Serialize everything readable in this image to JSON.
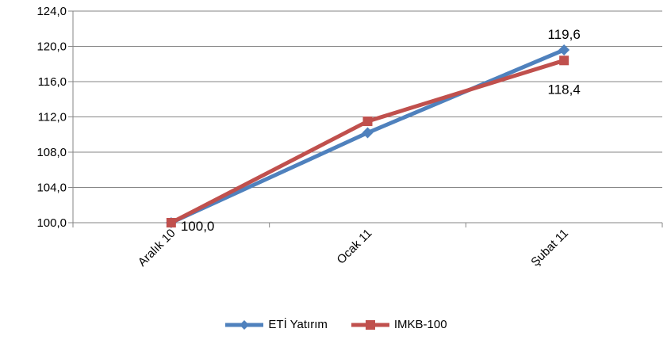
{
  "chart_data": {
    "type": "line",
    "title": "",
    "xlabel": "",
    "ylabel": "",
    "categories": [
      "Aralık 10",
      "Ocak 11",
      "Şubat 11"
    ],
    "ylim": [
      100,
      124
    ],
    "yticks": [
      "100,0",
      "104,0",
      "108,0",
      "112,0",
      "116,0",
      "120,0",
      "124,0"
    ],
    "grid": true,
    "legend_position": "bottom",
    "series": [
      {
        "name": "ETİ Yatırım",
        "color": "#4F81BD",
        "marker": "diamond",
        "values": [
          100.0,
          110.2,
          119.6
        ],
        "labels": [
          "100,0",
          "",
          "119,6"
        ]
      },
      {
        "name": "IMKB-100",
        "color": "#C0504D",
        "marker": "square",
        "values": [
          100.0,
          111.5,
          118.4
        ],
        "labels": [
          "",
          "",
          "118,4"
        ]
      }
    ]
  }
}
